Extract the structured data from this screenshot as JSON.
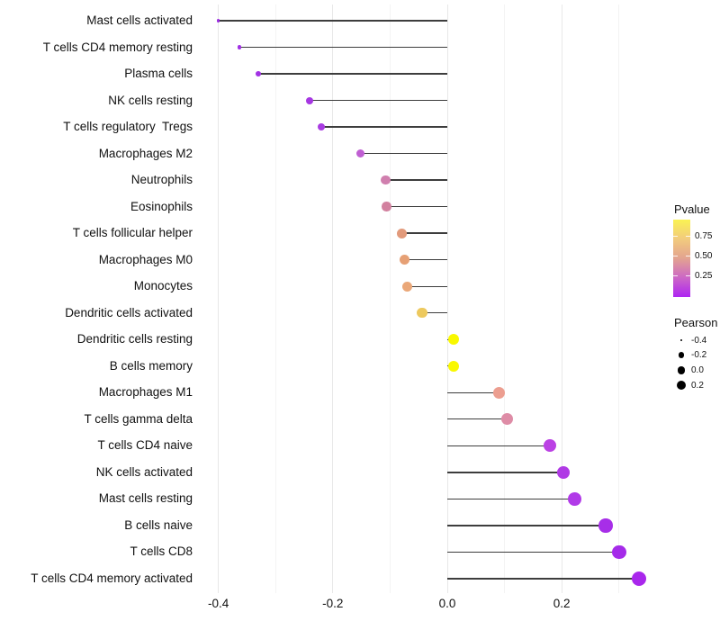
{
  "chart_data": {
    "type": "scatter",
    "variant": "lollipop",
    "title": "",
    "xlabel": "",
    "ylabel": "",
    "orientation": "horizontal",
    "x_axis": {
      "tick_labels": [
        "-0.4",
        "-0.2",
        "0.0",
        "0.2"
      ],
      "tick_values": [
        -0.4,
        -0.2,
        0.0,
        0.2
      ],
      "minor_tick_values": [
        -0.3,
        -0.1,
        0.1,
        0.3
      ],
      "range": [
        -0.435,
        0.375
      ],
      "grid": "vertical-only"
    },
    "baseline_x": 0.0,
    "points": [
      {
        "category": "Mast cells activated",
        "pearson": -0.4,
        "color": "#9a2ce1"
      },
      {
        "category": "T cells CD4 memory resting",
        "pearson": -0.363,
        "color": "#a130e5"
      },
      {
        "category": "Plasma cells",
        "pearson": -0.33,
        "color": "#a232e4"
      },
      {
        "category": "NK cells resting",
        "pearson": -0.24,
        "color": "#a637e2"
      },
      {
        "category": "T cells regulatory  Tregs",
        "pearson": -0.22,
        "color": "#a93ce2"
      },
      {
        "category": "Macrophages M2",
        "pearson": -0.152,
        "color": "#c05fd3"
      },
      {
        "category": "Neutrophils",
        "pearson": -0.108,
        "color": "#d07fae"
      },
      {
        "category": "Eosinophils",
        "pearson": -0.106,
        "color": "#d2819f"
      },
      {
        "category": "T cells follicular helper",
        "pearson": -0.08,
        "color": "#e29a7b"
      },
      {
        "category": "Macrophages M0",
        "pearson": -0.075,
        "color": "#e6a075"
      },
      {
        "category": "Monocytes",
        "pearson": -0.07,
        "color": "#eaa778"
      },
      {
        "category": "Dendritic cells activated",
        "pearson": -0.044,
        "color": "#edc95e"
      },
      {
        "category": "Dendritic cells resting",
        "pearson": 0.011,
        "color": "#f9f800"
      },
      {
        "category": "B cells memory",
        "pearson": 0.011,
        "color": "#f9f800"
      },
      {
        "category": "Macrophages M1",
        "pearson": 0.091,
        "color": "#ec9e90"
      },
      {
        "category": "T cells gamma delta",
        "pearson": 0.105,
        "color": "#de8ca6"
      },
      {
        "category": "T cells CD4 naive",
        "pearson": 0.179,
        "color": "#bb41e4"
      },
      {
        "category": "NK cells activated",
        "pearson": 0.203,
        "color": "#b03ae5"
      },
      {
        "category": "Mast cells resting",
        "pearson": 0.222,
        "color": "#b13ae8"
      },
      {
        "category": "B cells naive",
        "pearson": 0.277,
        "color": "#a72ee8"
      },
      {
        "category": "T cells CD8",
        "pearson": 0.3,
        "color": "#a52be9"
      },
      {
        "category": "T cells CD4 memory activated",
        "pearson": 0.335,
        "color": "#a927ec"
      }
    ],
    "legend_colorbar": {
      "title": "Pvalue",
      "tick_labels": [
        "0.75",
        "0.50",
        "0.25"
      ],
      "tick_positions_pct": [
        21.5,
        46.7,
        72.0
      ],
      "gradient_top_to_bottom": [
        "#faf253",
        "#f2cb7d",
        "#e3a390",
        "#cc67c6",
        "#ae25f2"
      ]
    },
    "legend_size": {
      "title": "Pearson",
      "entries": [
        {
          "label": "-0.4",
          "radius": 1.4
        },
        {
          "label": "-0.2",
          "radius": 3.4
        },
        {
          "label": "0.0",
          "radius": 4.4
        },
        {
          "label": "0.2",
          "radius": 5.2
        }
      ]
    },
    "line_color": "#3d3d3d"
  }
}
